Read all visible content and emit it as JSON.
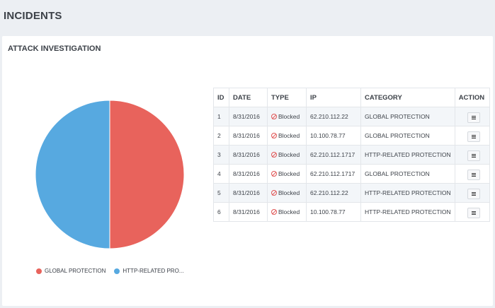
{
  "page": {
    "title": "INCIDENTS"
  },
  "panel": {
    "title": "ATTACK INVESTIGATION"
  },
  "chart_data": {
    "type": "pie",
    "slices": [
      {
        "label": "GLOBAL PROTECTION",
        "value": 50,
        "color": "#e8635c"
      },
      {
        "label": "HTTP-RELATED PRO...",
        "value": 50,
        "color": "#57a9e0"
      }
    ]
  },
  "legend": [
    {
      "label": "GLOBAL PROTECTION",
      "color": "#e8635c"
    },
    {
      "label": "HTTP-RELATED PRO...",
      "color": "#57a9e0"
    }
  ],
  "table": {
    "headers": {
      "id": "ID",
      "date": "DATE",
      "type": "TYPE",
      "ip": "IP",
      "category": "CATEGORY",
      "action": "ACTION"
    },
    "rows": [
      {
        "id": "1",
        "date": "8/31/2016",
        "type": "Blocked",
        "ip": "62.210.112.22",
        "category": "GLOBAL PROTECTION"
      },
      {
        "id": "2",
        "date": "8/31/2016",
        "type": "Blocked",
        "ip": "10.100.78.77",
        "category": "GLOBAL PROTECTION"
      },
      {
        "id": "3",
        "date": "8/31/2016",
        "type": "Blocked",
        "ip": "62.210.112.1717",
        "category": "HTTP-RELATED PROTECTION"
      },
      {
        "id": "4",
        "date": "8/31/2016",
        "type": "Blocked",
        "ip": "62.210.112.1717",
        "category": "GLOBAL PROTECTION"
      },
      {
        "id": "5",
        "date": "8/31/2016",
        "type": "Blocked",
        "ip": "62.210.112.22",
        "category": "HTTP-RELATED PROTECTION"
      },
      {
        "id": "6",
        "date": "8/31/2016",
        "type": "Blocked",
        "ip": "10.100.78.77",
        "category": "HTTP-RELATED PROTECTION"
      }
    ]
  }
}
